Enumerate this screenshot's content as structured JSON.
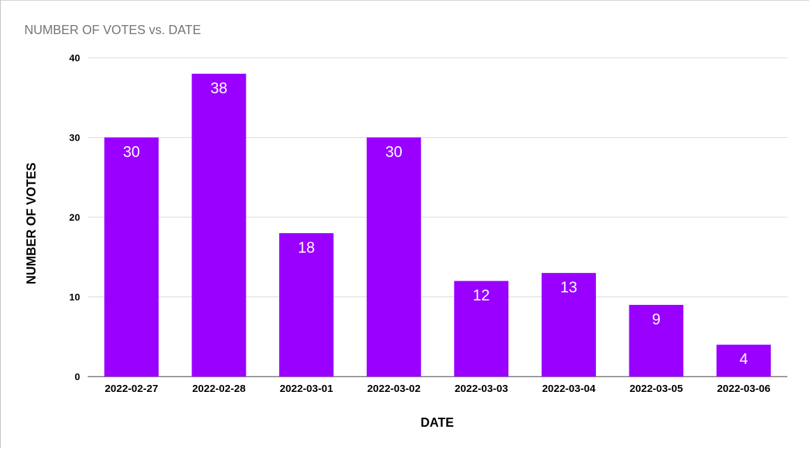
{
  "chart_data": {
    "type": "bar",
    "title": "NUMBER OF VOTES vs. DATE",
    "xlabel": "DATE",
    "ylabel": "NUMBER OF VOTES",
    "categories": [
      "2022-02-27",
      "2022-02-28",
      "2022-03-01",
      "2022-03-02",
      "2022-03-03",
      "2022-03-04",
      "2022-03-05",
      "2022-03-06"
    ],
    "values": [
      30,
      38,
      18,
      30,
      12,
      13,
      9,
      4
    ],
    "ylim": [
      0,
      40
    ],
    "yticks": [
      0,
      10,
      20,
      30,
      40
    ],
    "grid": true,
    "legend": "none",
    "data_labels": true,
    "colors": {
      "bar": "#9900ff",
      "grid": "#d9d9d9",
      "title": "#757575",
      "text": "#000000",
      "label": "#ffffff"
    }
  }
}
